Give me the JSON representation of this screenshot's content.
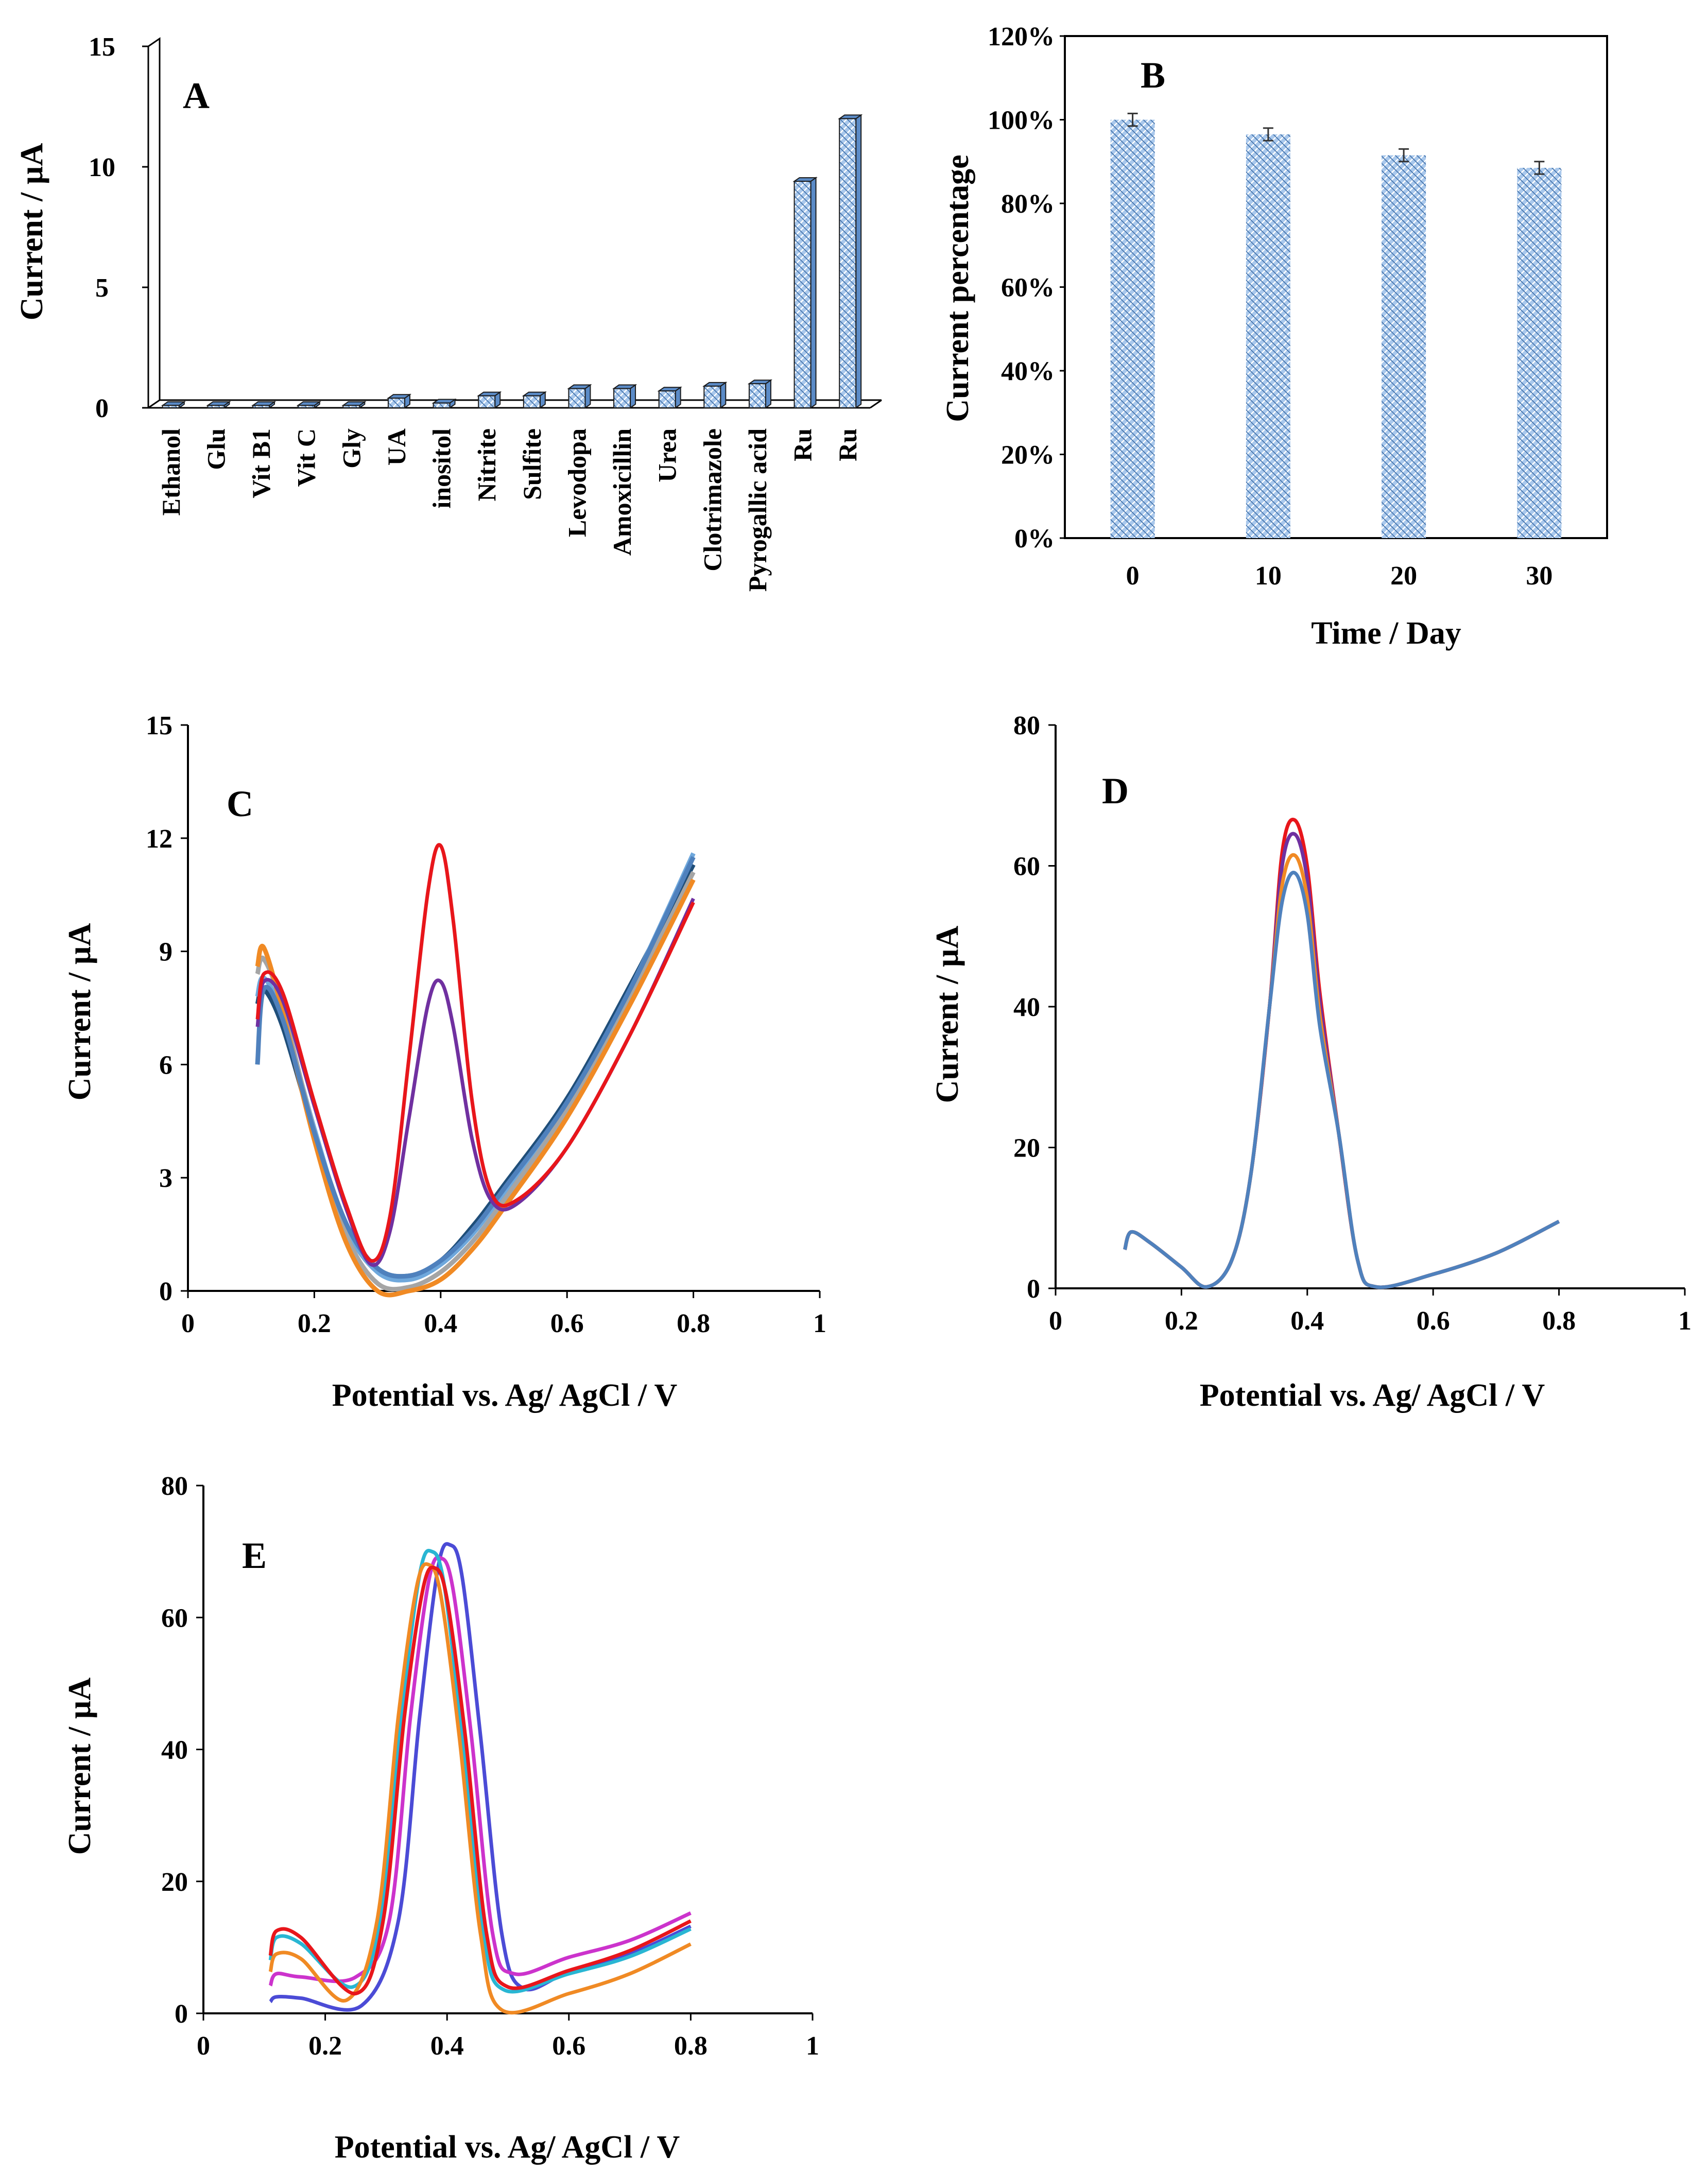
{
  "colors": {
    "bar_fill": "#a9c8ec",
    "bar_side": "#5b8bc7",
    "bar_edge": "#1a1a1a",
    "axis": "#000000",
    "red": "#e8161b",
    "purple": "#7030a0",
    "blue": "#4f81bd",
    "orange": "#f08a24",
    "gray": "#a5a5a5",
    "lightblue": "#6fa8dc",
    "navy": "#1f4e79",
    "magenta": "#cc33cc",
    "royal": "#4b4bd6",
    "cyan": "#29b6d3"
  },
  "chart_data": [
    {
      "panel": "A",
      "type": "bar",
      "title": "",
      "panel_label": "A",
      "ylabel": "Current / µA",
      "xlabel": "",
      "ylim": [
        0,
        15
      ],
      "yticks": [
        "0",
        "5",
        "10",
        "15"
      ],
      "categories": [
        "Ethanol",
        "Glu",
        "Vit B1",
        "Vit C",
        "Gly",
        "UA",
        "inositol",
        "Nitrite",
        "Sulfite",
        "Levodopa",
        "Amoxicillin",
        "Urea",
        "Clotrimazole",
        "Pyrogallic acid",
        "Ru",
        "Ru"
      ],
      "values": [
        0.1,
        0.1,
        0.1,
        0.1,
        0.1,
        0.4,
        0.2,
        0.5,
        0.5,
        0.8,
        0.8,
        0.7,
        0.9,
        1.0,
        9.4,
        12.0
      ]
    },
    {
      "panel": "B",
      "type": "bar",
      "panel_label": "B",
      "ylabel": "Current percentage",
      "xlabel": "Time / Day",
      "ylim": [
        0,
        120
      ],
      "yticks": [
        "0%",
        "20%",
        "40%",
        "60%",
        "80%",
        "100%",
        "120%"
      ],
      "categories": [
        "0",
        "10",
        "20",
        "30"
      ],
      "values": [
        100,
        96.5,
        91.5,
        88.5
      ],
      "errors": [
        1.5,
        1.5,
        1.5,
        1.5
      ]
    },
    {
      "panel": "C",
      "type": "line",
      "panel_label": "C",
      "ylabel": "Current / µA",
      "xlabel": "Potential vs. Ag/ AgCl / V",
      "xlim": [
        0,
        1
      ],
      "ylim": [
        0,
        15
      ],
      "xticks": [
        "0",
        "0.2",
        "0.4",
        "0.6",
        "0.8",
        "1"
      ],
      "yticks": [
        "0",
        "3",
        "6",
        "9",
        "12",
        "15"
      ],
      "series": [
        {
          "name": "red",
          "color": "red",
          "x": [
            0.11,
            0.12,
            0.15,
            0.2,
            0.25,
            0.29,
            0.32,
            0.35,
            0.38,
            0.4,
            0.42,
            0.45,
            0.48,
            0.52,
            0.6,
            0.7,
            0.8
          ],
          "y": [
            7.2,
            8.4,
            7.9,
            5.0,
            2.3,
            0.8,
            2.0,
            6.2,
            10.6,
            11.8,
            9.8,
            5.0,
            2.6,
            2.4,
            3.8,
            6.8,
            10.3
          ]
        },
        {
          "name": "purple",
          "color": "purple",
          "x": [
            0.11,
            0.12,
            0.15,
            0.2,
            0.25,
            0.29,
            0.32,
            0.35,
            0.38,
            0.4,
            0.42,
            0.45,
            0.48,
            0.52,
            0.6,
            0.7,
            0.8
          ],
          "y": [
            7.0,
            8.2,
            7.7,
            4.9,
            2.2,
            0.7,
            1.6,
            4.6,
            7.6,
            8.2,
            7.0,
            4.0,
            2.4,
            2.3,
            3.8,
            6.8,
            10.4
          ]
        },
        {
          "name": "blue",
          "color": "blue",
          "x": [
            0.11,
            0.12,
            0.15,
            0.2,
            0.25,
            0.3,
            0.35,
            0.4,
            0.45,
            0.5,
            0.6,
            0.7,
            0.8
          ],
          "y": [
            6.0,
            8.0,
            7.2,
            4.2,
            1.8,
            0.6,
            0.4,
            0.8,
            1.6,
            2.7,
            5.0,
            8.0,
            11.5
          ]
        },
        {
          "name": "orange",
          "color": "orange",
          "x": [
            0.11,
            0.12,
            0.15,
            0.2,
            0.25,
            0.3,
            0.35,
            0.4,
            0.45,
            0.5,
            0.6,
            0.7,
            0.8
          ],
          "y": [
            8.6,
            9.1,
            7.4,
            4.0,
            1.3,
            0.0,
            0.0,
            0.3,
            1.1,
            2.2,
            4.6,
            7.6,
            10.9
          ]
        },
        {
          "name": "gray",
          "color": "gray",
          "x": [
            0.11,
            0.12,
            0.15,
            0.2,
            0.25,
            0.3,
            0.35,
            0.4,
            0.45,
            0.5,
            0.6,
            0.7,
            0.8
          ],
          "y": [
            8.4,
            8.8,
            7.5,
            4.2,
            1.5,
            0.2,
            0.1,
            0.5,
            1.3,
            2.4,
            4.8,
            7.8,
            11.1
          ]
        },
        {
          "name": "lightblue",
          "color": "lightblue",
          "x": [
            0.11,
            0.12,
            0.15,
            0.2,
            0.25,
            0.3,
            0.35,
            0.4,
            0.45,
            0.5,
            0.6,
            0.7,
            0.8
          ],
          "y": [
            7.8,
            8.3,
            7.3,
            4.3,
            1.7,
            0.5,
            0.3,
            0.7,
            1.5,
            2.6,
            4.9,
            8.0,
            11.6
          ]
        },
        {
          "name": "navy",
          "color": "navy",
          "x": [
            0.11,
            0.12,
            0.15,
            0.2,
            0.25,
            0.3,
            0.35,
            0.4,
            0.45,
            0.5,
            0.6,
            0.7,
            0.8
          ],
          "y": [
            7.6,
            8.0,
            7.0,
            4.2,
            1.8,
            0.6,
            0.4,
            0.8,
            1.7,
            2.8,
            5.1,
            8.1,
            11.3
          ]
        }
      ]
    },
    {
      "panel": "D",
      "type": "line",
      "panel_label": "D",
      "ylabel": "Current / µA",
      "xlabel": "Potential vs. Ag/ AgCl / V",
      "xlim": [
        0,
        1
      ],
      "ylim": [
        0,
        80
      ],
      "xticks": [
        "0",
        "0.2",
        "0.4",
        "0.6",
        "0.8",
        "1"
      ],
      "yticks": [
        "0",
        "20",
        "40",
        "60",
        "80"
      ],
      "series": [
        {
          "name": "red",
          "color": "red",
          "peak": 66.5
        },
        {
          "name": "purple",
          "color": "purple",
          "peak": 64.5
        },
        {
          "name": "orange",
          "color": "orange",
          "peak": 61.5
        },
        {
          "name": "blue",
          "color": "blue",
          "peak": 59.0
        }
      ]
    },
    {
      "panel": "E",
      "type": "line",
      "panel_label": "E",
      "ylabel": "Current / µA",
      "xlabel": "Potential vs. Ag/ AgCl / V",
      "xlim": [
        0,
        1
      ],
      "ylim": [
        0,
        80
      ],
      "xticks": [
        "0",
        "0.2",
        "0.4",
        "0.6",
        "0.8",
        "1"
      ],
      "yticks": [
        "0",
        "20",
        "40",
        "60",
        "80"
      ],
      "series": [
        {
          "name": "royal",
          "color": "royal",
          "peak_x": 0.405,
          "peak": 71.0,
          "start": 2.5,
          "min_x": 0.26,
          "min_y": 1.2,
          "trough": 3.8,
          "end": 13.2
        },
        {
          "name": "magenta",
          "color": "magenta",
          "peak_x": 0.39,
          "peak": 69.0,
          "start": 6.0,
          "min_x": 0.25,
          "min_y": 5.5,
          "trough": 6.0,
          "end": 15.2
        },
        {
          "name": "cyan",
          "color": "cyan",
          "peak_x": 0.375,
          "peak": 70.0,
          "start": 11.5,
          "min_x": 0.245,
          "min_y": 4.0,
          "trough": 3.5,
          "end": 12.8
        },
        {
          "name": "orange",
          "color": "orange",
          "peak_x": 0.37,
          "peak": 68.0,
          "start": 9.0,
          "min_x": 0.235,
          "min_y": 2.0,
          "trough": 0.5,
          "end": 10.5
        },
        {
          "name": "red",
          "color": "red",
          "peak_x": 0.38,
          "peak": 67.5,
          "start": 12.5,
          "min_x": 0.25,
          "min_y": 3.0,
          "trough": 4.0,
          "end": 14.0
        }
      ]
    }
  ]
}
